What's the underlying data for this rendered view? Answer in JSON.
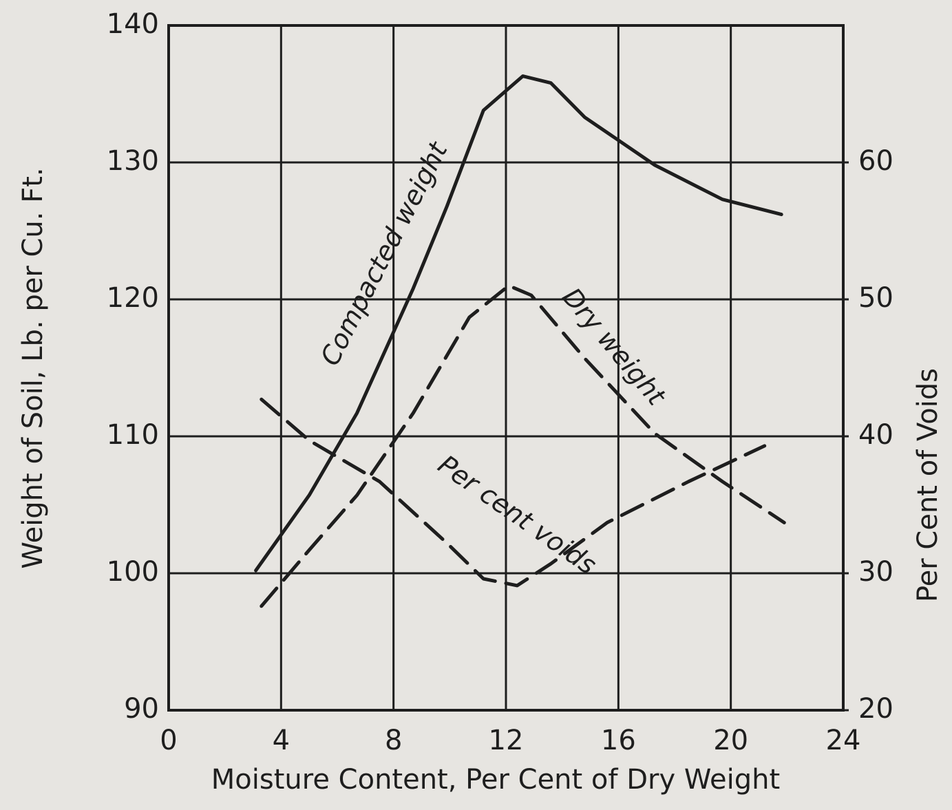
{
  "chart_data": {
    "type": "line",
    "xlabel": "Moisture Content, Per Cent of Dry Weight",
    "ylabel": "Weight of Soil, Lb. per Cu. Ft.",
    "y2label": "Per Cent of Voids",
    "xlim": [
      0,
      24
    ],
    "xticks": [
      0,
      4,
      8,
      12,
      16,
      20,
      24
    ],
    "ylim": [
      90,
      140
    ],
    "yticks": [
      90,
      100,
      110,
      120,
      130,
      140
    ],
    "y2lim": [
      20,
      70
    ],
    "y2ticks": [
      20,
      30,
      40,
      50,
      60
    ],
    "grid": true,
    "series": [
      {
        "name": "Compacted weight",
        "color": "#1e1e1e",
        "style": "solid",
        "x": [
          3.1,
          5.0,
          6.7,
          8.7,
          9.9,
          11.2,
          12.6,
          13.6,
          14.8,
          17.3,
          19.7,
          21.8
        ],
        "values": [
          100.2,
          105.7,
          111.7,
          120.8,
          126.8,
          133.8,
          136.3,
          135.8,
          133.3,
          129.8,
          127.3,
          126.2
        ]
      },
      {
        "name": "Dry weight",
        "color": "#1e1e1e",
        "style": "dashed",
        "x": [
          3.3,
          5.0,
          6.7,
          8.7,
          10.7,
          12.1,
          12.9,
          14.8,
          17.3,
          19.7,
          21.9
        ],
        "values": [
          97.6,
          101.7,
          105.7,
          111.7,
          118.7,
          121.0,
          120.3,
          115.7,
          110.2,
          106.7,
          103.7
        ]
      },
      {
        "name": "Per cent voids",
        "color": "#1e1e1e",
        "style": "dashed",
        "axis": "y2",
        "x": [
          3.3,
          5.0,
          7.5,
          9.9,
          11.2,
          12.4,
          13.6,
          15.6,
          18.5,
          21.2
        ],
        "values": [
          42.7,
          39.7,
          36.7,
          32.2,
          29.6,
          29.1,
          30.7,
          33.7,
          36.7,
          39.3
        ]
      }
    ]
  }
}
